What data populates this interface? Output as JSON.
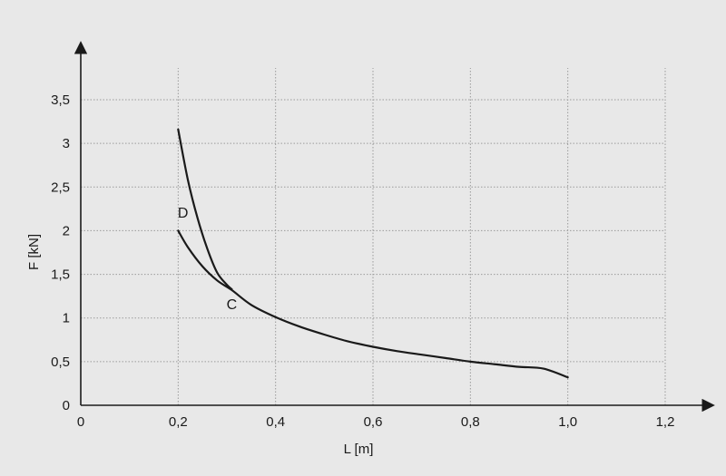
{
  "chart_data": {
    "type": "line",
    "title": "",
    "xlabel": "L [m]",
    "ylabel": "F [kN]",
    "xlim": [
      0,
      1.2
    ],
    "ylim": [
      0,
      3.5
    ],
    "grid": true,
    "x_ticks": [
      0,
      0.2,
      0.4,
      0.6,
      0.8,
      1.0,
      1.2
    ],
    "x_tick_labels": [
      "0",
      "0,2",
      "0,4",
      "0,6",
      "0,8",
      "1,0",
      "1,2"
    ],
    "y_ticks": [
      0,
      0.5,
      1,
      1.5,
      2,
      2.5,
      3,
      3.5
    ],
    "y_tick_labels": [
      "0",
      "0,5",
      "1",
      "1,5",
      "2",
      "2,5",
      "3",
      "3,5"
    ],
    "series": [
      {
        "x": [
          0.2,
          0.22,
          0.24,
          0.26,
          0.28,
          0.3,
          0.31
        ],
        "y": [
          3.16,
          2.58,
          2.14,
          1.79,
          1.52,
          1.38,
          1.33
        ]
      },
      {
        "x": [
          0.2,
          0.22,
          0.25,
          0.28,
          0.31,
          0.35,
          0.4,
          0.45,
          0.5,
          0.55,
          0.6,
          0.65,
          0.7,
          0.75,
          0.8,
          0.85,
          0.9,
          0.95,
          1.0
        ],
        "y": [
          2.0,
          1.81,
          1.59,
          1.43,
          1.32,
          1.15,
          1.01,
          0.9,
          0.81,
          0.73,
          0.67,
          0.62,
          0.58,
          0.54,
          0.5,
          0.47,
          0.44,
          0.42,
          0.32
        ]
      }
    ],
    "annotations": [
      {
        "text": "D",
        "x": 0.21,
        "y": 2.15
      },
      {
        "text": "C",
        "x": 0.31,
        "y": 1.1
      }
    ]
  }
}
